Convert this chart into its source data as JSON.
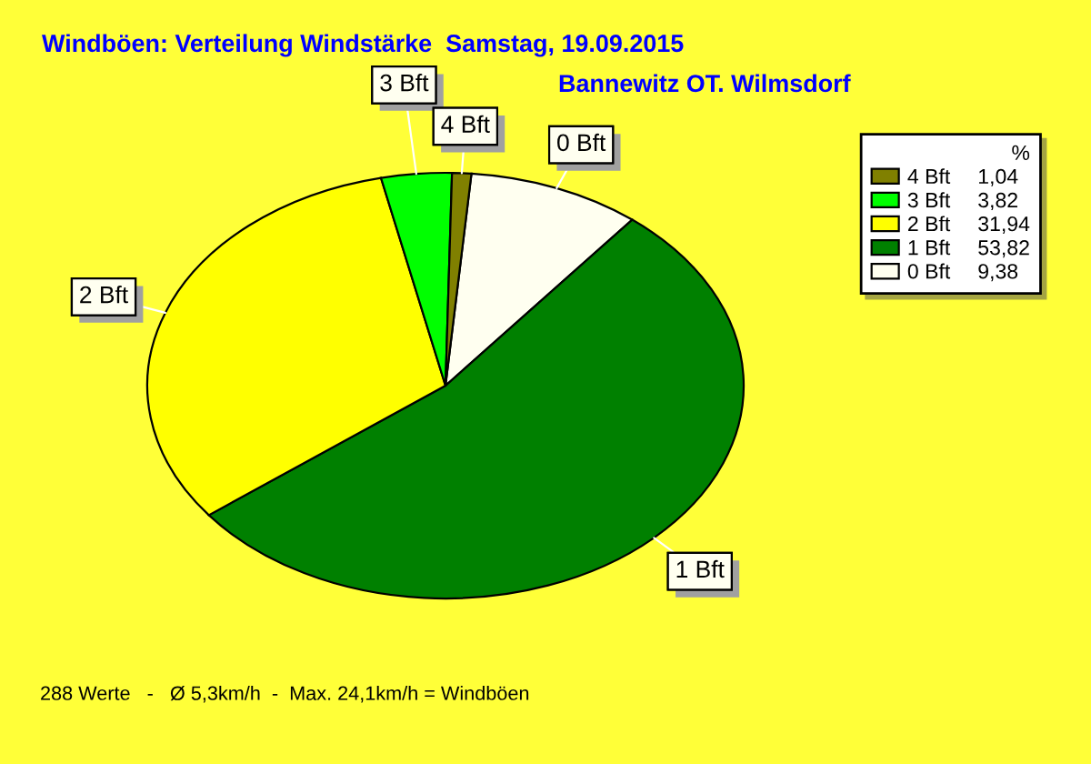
{
  "chart_data": {
    "type": "pie",
    "title": "Windböen: Verteilung Windstärke  Samstag, 19.09.2015",
    "subtitle": "Bannewitz OT. Wilmsdorf",
    "categories": [
      "0 Bft",
      "1 Bft",
      "2 Bft",
      "3 Bft",
      "4 Bft"
    ],
    "values": [
      9.38,
      53.82,
      31.94,
      3.82,
      1.04
    ],
    "value_labels": [
      "9,38",
      "53,82",
      "31,94",
      "3,82",
      "1,04"
    ],
    "colors": [
      "#fffff0",
      "#008000",
      "#ffff00",
      "#00ff00",
      "#808000"
    ],
    "legend": "top right",
    "legend_title": "%",
    "annotations": [
      "288 Werte   -   Ø 5,3km/h  -  Max. 24,1km/h = Windböen"
    ]
  }
}
